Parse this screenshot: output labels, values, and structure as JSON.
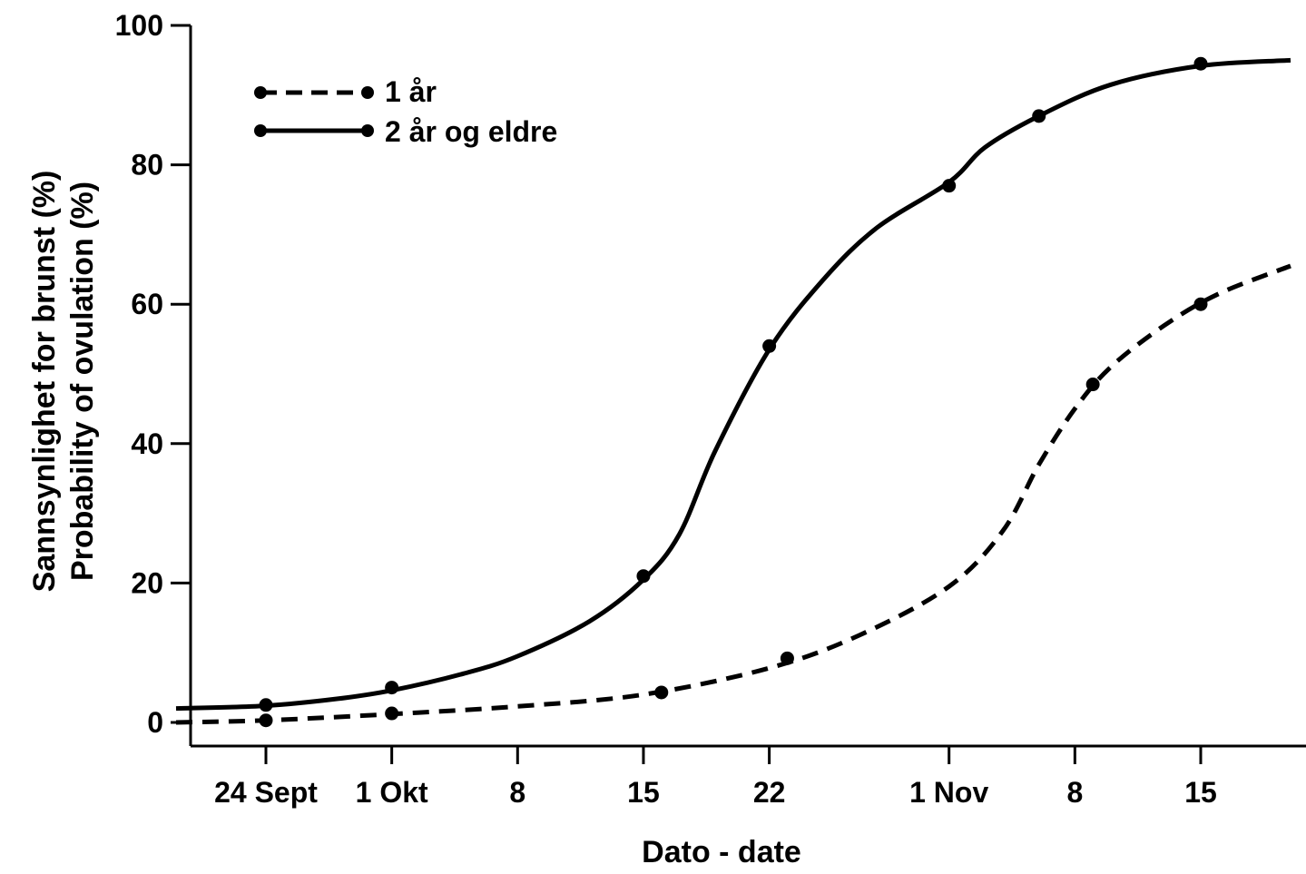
{
  "chart_data": {
    "type": "line",
    "xlabel": "Dato - date",
    "ylabel_lines": [
      "Sannsynlighet for brunst (%)",
      "Probability of ovulation (%)"
    ],
    "ylim": [
      0,
      100
    ],
    "y_ticks": [
      0,
      20,
      40,
      60,
      80,
      100
    ],
    "x_tick_labels": [
      "24 Sept",
      "1 Okt",
      "8",
      "15",
      "22",
      "1 Nov",
      "8",
      "15"
    ],
    "x_tick_dates": [
      "Sep 24",
      "Oct 1",
      "Oct 8",
      "Oct 15",
      "Oct 22",
      "Nov 1",
      "Nov 8",
      "Nov 15"
    ],
    "xlim": [
      "Sep 19",
      "Nov 20"
    ],
    "grid": false,
    "legend_position": "top-left",
    "series": [
      {
        "name": "1 år",
        "style": "dashed",
        "color": "#000000",
        "points": [
          {
            "x": "Sep 24",
            "y": 0.3
          },
          {
            "x": "Oct 1",
            "y": 1.3
          },
          {
            "x": "Oct 16",
            "y": 4.3
          },
          {
            "x": "Oct 23",
            "y": 9.2
          },
          {
            "x": "Nov 9",
            "y": 48.5
          },
          {
            "x": "Nov 15",
            "y": 60
          }
        ],
        "curve": [
          {
            "x": "Sep 19",
            "y": 0
          },
          {
            "x": "Sep 24",
            "y": 0.3
          },
          {
            "x": "Oct 1",
            "y": 1.2
          },
          {
            "x": "Oct 8",
            "y": 2.3
          },
          {
            "x": "Oct 15",
            "y": 4.0
          },
          {
            "x": "Oct 22",
            "y": 7.8
          },
          {
            "x": "Oct 27",
            "y": 12.5
          },
          {
            "x": "Nov 1",
            "y": 19.5
          },
          {
            "x": "Nov 4",
            "y": 27.5
          },
          {
            "x": "Nov 6",
            "y": 37
          },
          {
            "x": "Nov 8",
            "y": 45
          },
          {
            "x": "Nov 10",
            "y": 51
          },
          {
            "x": "Nov 13",
            "y": 57
          },
          {
            "x": "Nov 16",
            "y": 61.5
          },
          {
            "x": "Nov 20",
            "y": 65.5
          }
        ]
      },
      {
        "name": "2 år og eldre",
        "style": "solid",
        "color": "#000000",
        "points": [
          {
            "x": "Sep 24",
            "y": 2.5
          },
          {
            "x": "Oct 1",
            "y": 5.0
          },
          {
            "x": "Oct 15",
            "y": 21
          },
          {
            "x": "Oct 22",
            "y": 54
          },
          {
            "x": "Nov 1",
            "y": 77
          },
          {
            "x": "Nov 6",
            "y": 87
          },
          {
            "x": "Nov 15",
            "y": 94.5
          }
        ],
        "curve": [
          {
            "x": "Sep 19",
            "y": 2.0
          },
          {
            "x": "Sep 24",
            "y": 2.4
          },
          {
            "x": "Sep 28",
            "y": 3.4
          },
          {
            "x": "Oct 1",
            "y": 4.6
          },
          {
            "x": "Oct 5",
            "y": 7.0
          },
          {
            "x": "Oct 8",
            "y": 9.5
          },
          {
            "x": "Oct 12",
            "y": 14.5
          },
          {
            "x": "Oct 15",
            "y": 20.5
          },
          {
            "x": "Oct 17",
            "y": 27
          },
          {
            "x": "Oct 19",
            "y": 39
          },
          {
            "x": "Oct 22",
            "y": 53.5
          },
          {
            "x": "Oct 25",
            "y": 63.5
          },
          {
            "x": "Oct 28",
            "y": 71
          },
          {
            "x": "Nov 1",
            "y": 77.5
          },
          {
            "x": "Nov 3",
            "y": 82.5
          },
          {
            "x": "Nov 6",
            "y": 87
          },
          {
            "x": "Nov 10",
            "y": 91.5
          },
          {
            "x": "Nov 15",
            "y": 94.2
          },
          {
            "x": "Nov 20",
            "y": 95
          }
        ]
      }
    ]
  }
}
